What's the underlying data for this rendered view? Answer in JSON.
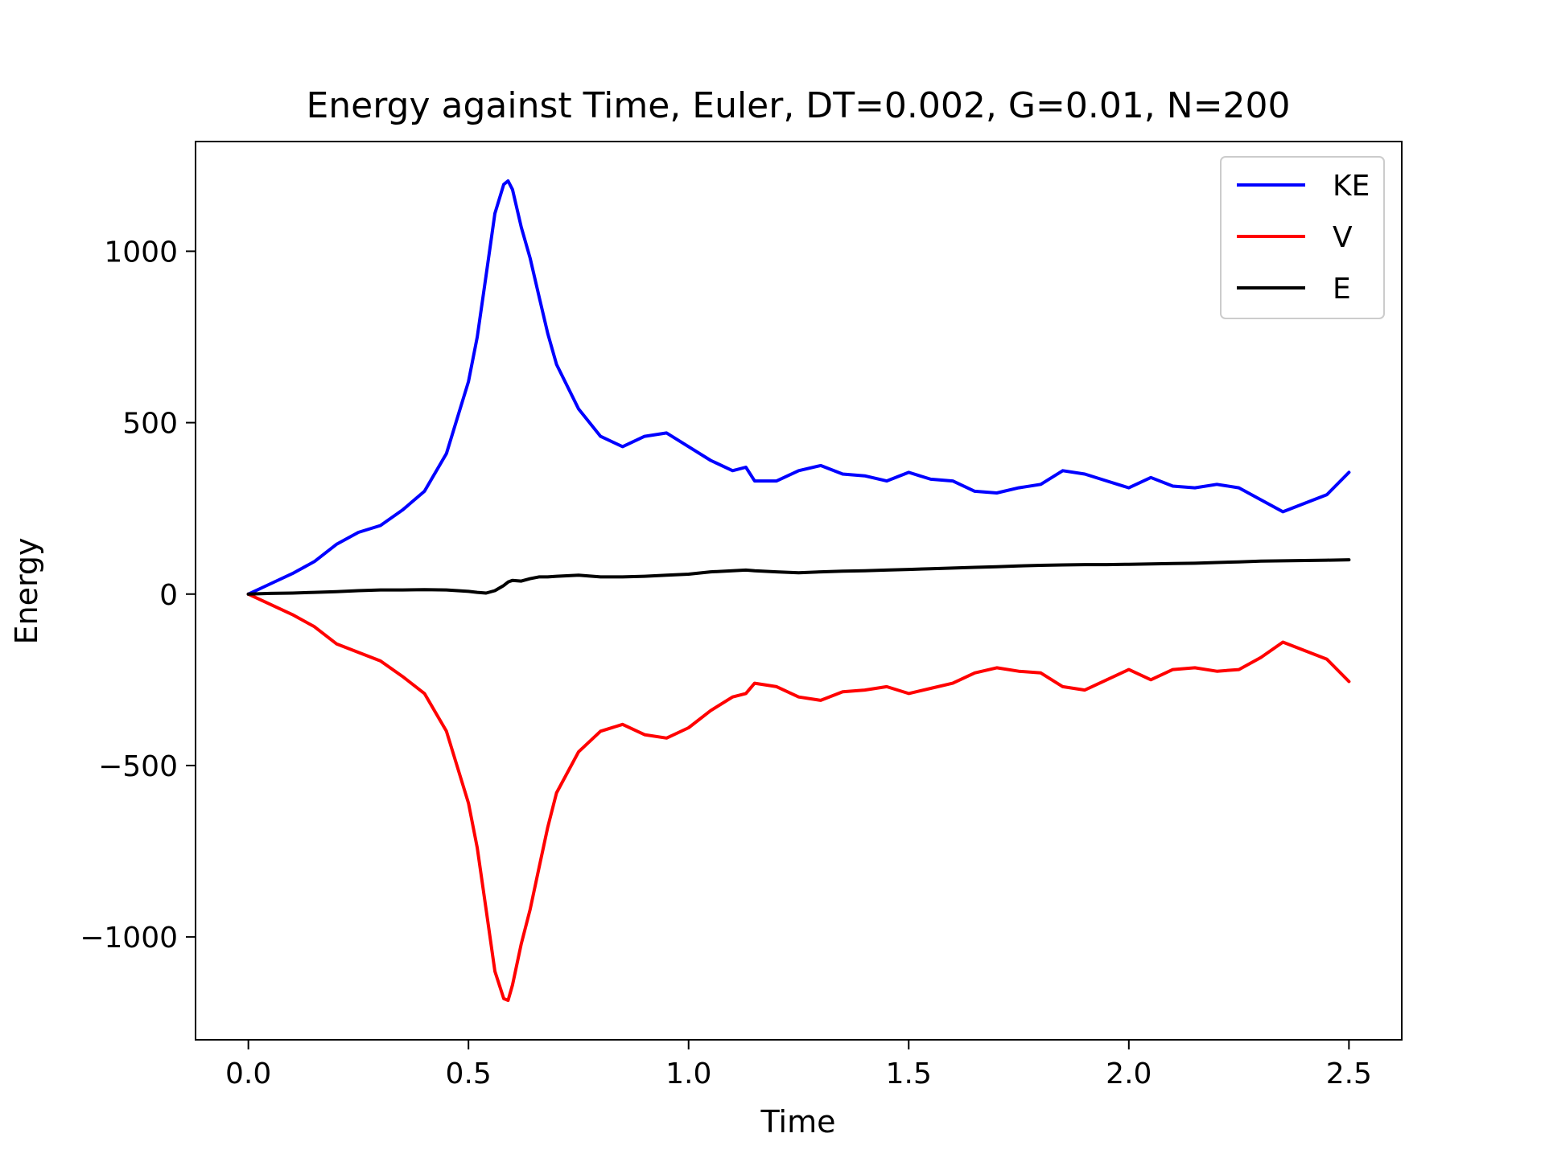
{
  "chart_data": {
    "type": "line",
    "title": "Energy against Time, Euler, DT=0.002, G=0.01, N=200",
    "xlabel": "Time",
    "ylabel": "Energy",
    "xlim": [
      -0.12,
      2.62
    ],
    "ylim": [
      -1300,
      1320
    ],
    "xticks": [
      0.0,
      0.5,
      1.0,
      1.5,
      2.0,
      2.5
    ],
    "xtick_labels": [
      "0.0",
      "0.5",
      "1.0",
      "1.5",
      "2.0",
      "2.5"
    ],
    "yticks": [
      1000,
      500,
      0,
      -500,
      -1000
    ],
    "ytick_labels": [
      "1000",
      "500",
      "0",
      "−500",
      "−1000"
    ],
    "grid": false,
    "legend_position": "top-right",
    "x": [
      0.0,
      0.05,
      0.1,
      0.15,
      0.2,
      0.25,
      0.3,
      0.35,
      0.4,
      0.45,
      0.5,
      0.52,
      0.54,
      0.56,
      0.58,
      0.59,
      0.6,
      0.62,
      0.64,
      0.66,
      0.68,
      0.7,
      0.75,
      0.8,
      0.85,
      0.9,
      0.95,
      1.0,
      1.05,
      1.1,
      1.13,
      1.15,
      1.2,
      1.25,
      1.3,
      1.35,
      1.4,
      1.45,
      1.5,
      1.55,
      1.6,
      1.65,
      1.7,
      1.75,
      1.8,
      1.85,
      1.9,
      1.95,
      2.0,
      2.05,
      2.1,
      2.15,
      2.2,
      2.25,
      2.3,
      2.35,
      2.4,
      2.45,
      2.5
    ],
    "series": [
      {
        "name": "KE",
        "color": "#0000ff",
        "values": [
          0,
          30,
          60,
          95,
          145,
          180,
          200,
          245,
          300,
          410,
          620,
          750,
          930,
          1110,
          1195,
          1205,
          1180,
          1070,
          980,
          870,
          760,
          670,
          540,
          460,
          430,
          460,
          470,
          430,
          390,
          360,
          370,
          330,
          330,
          360,
          375,
          350,
          345,
          330,
          355,
          335,
          330,
          300,
          295,
          310,
          320,
          360,
          350,
          330,
          310,
          340,
          315,
          310,
          320,
          310,
          275,
          240,
          265,
          290,
          355
        ]
      },
      {
        "name": "V",
        "color": "#ff0000",
        "values": [
          0,
          -30,
          -60,
          -95,
          -145,
          -170,
          -195,
          -240,
          -290,
          -400,
          -610,
          -740,
          -920,
          -1100,
          -1180,
          -1185,
          -1140,
          -1020,
          -920,
          -800,
          -680,
          -580,
          -460,
          -400,
          -380,
          -410,
          -420,
          -390,
          -340,
          -300,
          -290,
          -260,
          -270,
          -300,
          -310,
          -285,
          -280,
          -270,
          -290,
          -275,
          -260,
          -230,
          -215,
          -225,
          -230,
          -270,
          -280,
          -250,
          -220,
          -250,
          -220,
          -215,
          -225,
          -220,
          -185,
          -140,
          -165,
          -190,
          -255
        ]
      },
      {
        "name": "E",
        "color": "#000000",
        "values": [
          0,
          2,
          3,
          5,
          7,
          10,
          12,
          12,
          13,
          12,
          8,
          5,
          3,
          10,
          25,
          35,
          40,
          38,
          45,
          50,
          50,
          52,
          55,
          50,
          50,
          52,
          55,
          58,
          65,
          68,
          70,
          68,
          65,
          62,
          65,
          67,
          68,
          70,
          72,
          74,
          76,
          78,
          80,
          82,
          84,
          85,
          86,
          86,
          87,
          88,
          89,
          90,
          92,
          94,
          96,
          97,
          98,
          99,
          100
        ]
      }
    ]
  }
}
